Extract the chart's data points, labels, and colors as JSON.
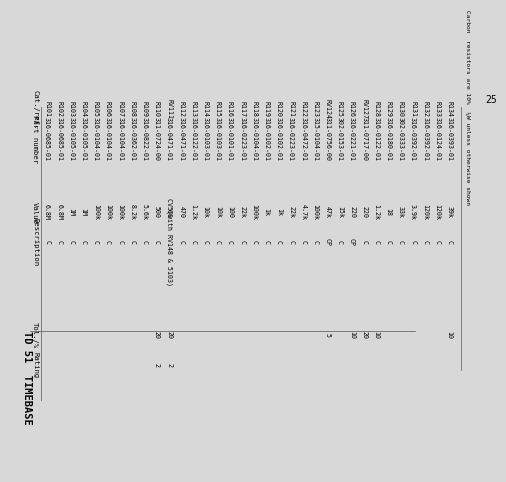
{
  "title": "TD 51  TIMEBASE",
  "page_number": "25",
  "footnote": "Carbon  resistors are 10%  ¼W unless otherwise shown",
  "col_headers": [
    "Cat.\nref.",
    "Part number",
    "Value",
    "Description",
    "Tol.\n%",
    "Rating"
  ],
  "rows": [
    [
      "R101",
      "316-0685-01",
      "6.8M",
      "C",
      "",
      ""
    ],
    [
      "R102",
      "316-0685-01",
      "6.8M",
      "C",
      "",
      ""
    ],
    [
      "R103",
      "316-0105-01",
      "1M",
      "C",
      "",
      ""
    ],
    [
      "R104",
      "316-0105-01",
      "1M",
      "C",
      "",
      ""
    ],
    [
      "R105",
      "316-0104-01",
      "100k",
      "C",
      "",
      ""
    ],
    [
      "R106",
      "316-0104-01",
      "100k",
      "C",
      "",
      ""
    ],
    [
      "R107",
      "316-0104-01",
      "100k",
      "C",
      "",
      ""
    ],
    [
      "R108",
      "316-0362-01",
      "8.2k",
      "C",
      "",
      ""
    ],
    [
      "R109",
      "316-0822-01",
      "5.6k",
      "C",
      "",
      ""
    ],
    [
      "R110",
      "311-0724-00",
      "500",
      "C",
      "20",
      "2"
    ],
    [
      "RV111",
      "316-0471-01",
      "560",
      "CV (with RV148 & 5103)",
      "20",
      "2"
    ],
    [
      "R112",
      "316-0471-01",
      "470",
      "C",
      "",
      ""
    ],
    [
      "R113",
      "316-0122-01",
      "1.2k",
      "C",
      "",
      ""
    ],
    [
      "R114",
      "316-0103-01",
      "10k",
      "C",
      "",
      ""
    ],
    [
      "R115",
      "316-0103-01",
      "10k",
      "C",
      "",
      ""
    ],
    [
      "R116",
      "316-0101-01",
      "100",
      "C",
      "",
      ""
    ],
    [
      "R117",
      "316-0223-01",
      "22k",
      "C",
      "",
      ""
    ],
    [
      "R118",
      "316-0104-01",
      "100k",
      "C",
      "",
      ""
    ],
    [
      "R119",
      "316-0102-01",
      "1k",
      "C",
      "",
      ""
    ],
    [
      "R120",
      "316-0102-01",
      "1k",
      "C",
      "",
      ""
    ],
    [
      "R121",
      "316-0223-01",
      "22k",
      "C",
      "",
      ""
    ],
    [
      "R122",
      "316-0472-01",
      "4.7k",
      "C",
      "",
      ""
    ],
    [
      "R123",
      "315-0104-01",
      "100k",
      "C",
      "",
      ""
    ],
    [
      "RV124",
      "311-0756-00",
      "47k",
      "CP",
      "5",
      ""
    ],
    [
      "R125",
      "302-0153-01",
      "15k",
      "C",
      "",
      ""
    ],
    [
      "R126",
      "316-0221-01",
      "220",
      "CP",
      "10",
      ""
    ],
    [
      "RV127",
      "311-0717-00",
      "220",
      "C",
      "20",
      ""
    ],
    [
      "R128",
      "316-0122-01",
      "1.2k",
      "C",
      "10",
      ""
    ],
    [
      "R129",
      "316-0180-01",
      "18",
      "C",
      "",
      ""
    ],
    [
      "R130",
      "302-0333-01",
      "33k",
      "C",
      "",
      ""
    ],
    [
      "R131",
      "316-0392-01",
      "3.9k",
      "C",
      "",
      ""
    ],
    [
      "R132",
      "316-0392-01",
      "120k",
      "C",
      "",
      ""
    ],
    [
      "R133",
      "316-0124-01",
      "120k",
      "C",
      "",
      ""
    ],
    [
      "R134",
      "316-0393-01",
      "39k",
      "C",
      "10",
      ""
    ]
  ],
  "bg_color": "#d8d8d8",
  "text_color": "#000000",
  "font_size": 4.8,
  "header_font_size": 5.2
}
